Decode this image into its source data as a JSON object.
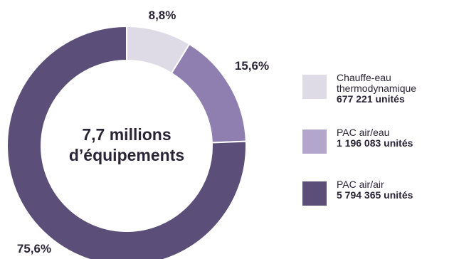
{
  "chart_data": {
    "type": "pie",
    "center_label": [
      "7,7 millions",
      "d’équipements"
    ],
    "slices": [
      {
        "label": "Chauffe-eau thermodynamique",
        "units": "677 221 unités",
        "percent": 8.8,
        "percent_label": "8,8%",
        "color": "#dedae6"
      },
      {
        "label": "PAC air/eau",
        "units": "1 196 083 unités",
        "percent": 15.6,
        "percent_label": "15,6%",
        "color": "#8f7fb0"
      },
      {
        "label": "PAC air/air",
        "units": "5 794 365 unités",
        "percent": 75.6,
        "percent_label": "75,6%",
        "color": "#5b4e78"
      }
    ],
    "legend_position": "right"
  },
  "legend": [
    {
      "lines": [
        "Chauffe-eau",
        "thermodynamique"
      ],
      "units": "677 221 unités",
      "color": "#dedae6"
    },
    {
      "lines": [
        "PAC air/eau"
      ],
      "units": "1 196 083 unités",
      "color": "#b3a6cc"
    },
    {
      "lines": [
        "PAC air/air"
      ],
      "units": "5 794 365 unités",
      "color": "#5b4e78"
    }
  ]
}
